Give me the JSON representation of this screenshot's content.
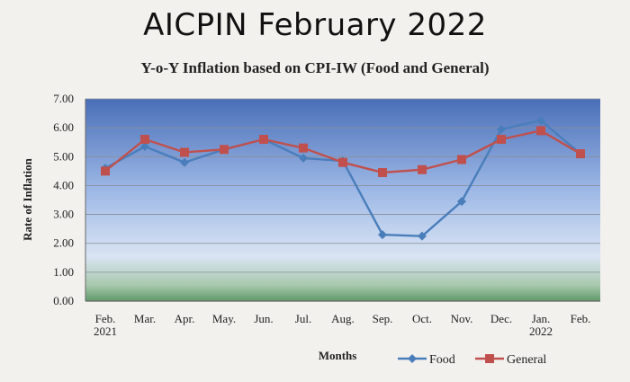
{
  "header": {
    "title": "AICPIN February 2022"
  },
  "chart_data": {
    "type": "line",
    "title": "Y-o-Y Inflation based on CPI-IW (Food and General)",
    "xlabel": "Months",
    "ylabel": "Rate of Inflation",
    "ylim": [
      0,
      7
    ],
    "yticks": [
      "0.00",
      "1.00",
      "2.00",
      "3.00",
      "4.00",
      "5.00",
      "6.00",
      "7.00"
    ],
    "categories": [
      [
        "Feb.",
        "2021"
      ],
      [
        "Mar."
      ],
      [
        "Apr."
      ],
      [
        "May."
      ],
      [
        "Jun."
      ],
      [
        "Jul."
      ],
      [
        "Aug."
      ],
      [
        "Sep."
      ],
      [
        "Oct."
      ],
      [
        "Nov."
      ],
      [
        "Dec."
      ],
      [
        "Jan.",
        "2022"
      ],
      [
        "Feb."
      ]
    ],
    "series": [
      {
        "name": "Food",
        "color": "#4a7ebb",
        "marker": "diamond",
        "values": [
          4.6,
          5.35,
          4.8,
          5.25,
          5.6,
          4.95,
          4.85,
          2.3,
          2.25,
          3.45,
          5.95,
          6.25,
          5.1
        ]
      },
      {
        "name": "General",
        "color": "#c0504d",
        "marker": "square",
        "values": [
          4.5,
          5.6,
          5.15,
          5.25,
          5.6,
          5.3,
          4.8,
          4.45,
          4.55,
          4.9,
          5.6,
          5.9,
          5.1
        ]
      }
    ],
    "grid": true,
    "legend": "bottom-right"
  }
}
